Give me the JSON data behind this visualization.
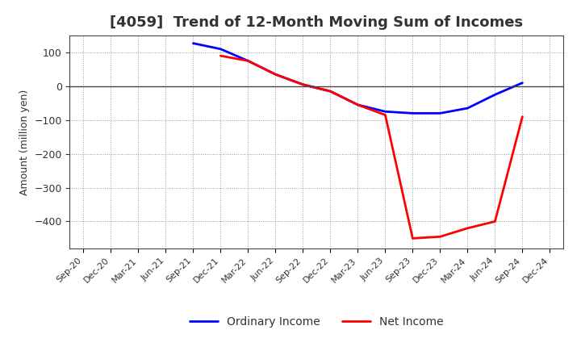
{
  "title": "[4059]  Trend of 12-Month Moving Sum of Incomes",
  "ylabel": "Amount (million yen)",
  "x_labels": [
    "Sep-20",
    "Dec-20",
    "Mar-21",
    "Jun-21",
    "Sep-21",
    "Dec-21",
    "Mar-22",
    "Jun-22",
    "Sep-22",
    "Dec-22",
    "Mar-23",
    "Jun-23",
    "Sep-23",
    "Dec-23",
    "Mar-24",
    "Jun-24",
    "Sep-24",
    "Dec-24"
  ],
  "ordinary_income": [
    null,
    null,
    null,
    null,
    127,
    110,
    75,
    35,
    5,
    -15,
    -55,
    -75,
    -80,
    -80,
    -65,
    -25,
    10,
    null
  ],
  "net_income": [
    null,
    null,
    null,
    null,
    null,
    90,
    75,
    35,
    5,
    -15,
    -55,
    -85,
    -450,
    -445,
    -420,
    -400,
    -90,
    null
  ],
  "oi_color": "#0000ff",
  "ni_color": "#ff0000",
  "bg_color": "#ffffff",
  "grid_color": "#999999",
  "ylim": [
    -480,
    150
  ],
  "yticks": [
    100,
    0,
    -100,
    -200,
    -300,
    -400
  ],
  "title_fontsize": 13,
  "axis_fontsize": 9,
  "legend_fontsize": 10
}
